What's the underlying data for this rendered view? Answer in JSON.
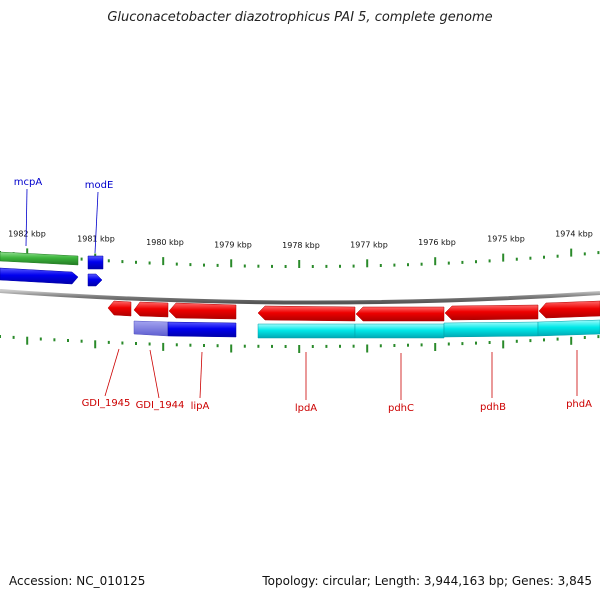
{
  "title": "Gluconacetobacter diazotrophicus PAI 5, complete genome",
  "accession": "Accession: NC_010125",
  "info": "Topology: circular; Length: 3,944,163 bp; Genes: 3,845",
  "colors": {
    "forward_cds": "#0000ee",
    "forward_gene": "#3cb43c",
    "reverse_cds": "#ee0000",
    "reverse_gene": "#00e0e0",
    "backbone": "#808080",
    "ticks": "#2a8a2a",
    "label_top": "#0000cc",
    "label_bottom": "#cc0000"
  },
  "kbp_labels": [
    "1982 kbp",
    "1981 kbp",
    "1980 kbp",
    "1979 kbp",
    "1978 kbp",
    "1977 kbp",
    "1976 kbp",
    "1975 kbp",
    "1974 kbp"
  ],
  "top_genes": [
    "mcpA",
    "modE"
  ],
  "bottom_genes": [
    "GDI_1945",
    "GDI_1944",
    "lipA",
    "lpdA",
    "pdhC",
    "pdhB",
    "phdA"
  ]
}
